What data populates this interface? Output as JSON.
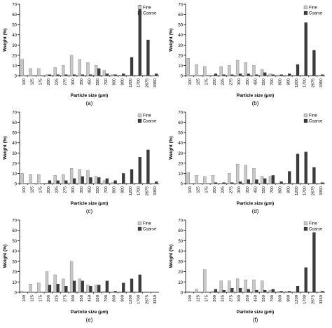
{
  "common": {
    "xlabel": "Particle size (μm)",
    "ylabel": "Weight (%)",
    "legend": [
      "Fine",
      "Coarse"
    ],
    "colors": {
      "fine": "#c8c8c8",
      "coarse": "#3c3c3c"
    }
  },
  "chart_data": [
    {
      "id": "a",
      "caption": "(a)",
      "type": "bar",
      "ylim": [
        0,
        70
      ],
      "yticks": [
        0,
        10,
        20,
        30,
        40,
        50,
        60,
        70
      ],
      "legend_position": "top-right",
      "categories": [
        "100",
        "125",
        "175",
        "200",
        "225",
        "275",
        "300",
        "350",
        "450",
        "550",
        "700",
        "800",
        "900",
        "1200",
        "1700",
        "2675",
        "3350"
      ],
      "series": [
        {
          "name": "Fine",
          "values": [
            16,
            7,
            7,
            1,
            8,
            10,
            20,
            16,
            13,
            10,
            5,
            1,
            0.5,
            0.5,
            0.5,
            0.5,
            0
          ]
        },
        {
          "name": "Coarse",
          "values": [
            0,
            0,
            0,
            1,
            1,
            1,
            1,
            1,
            1,
            7,
            2,
            1,
            2,
            18,
            69,
            35,
            2
          ]
        }
      ]
    },
    {
      "id": "b",
      "caption": "(b)",
      "type": "bar",
      "ylim": [
        0,
        70
      ],
      "yticks": [
        0,
        10,
        20,
        30,
        40,
        50,
        60,
        70
      ],
      "legend_position": "top-right",
      "categories": [
        "100",
        "125",
        "175",
        "200",
        "225",
        "275",
        "300",
        "350",
        "450",
        "550",
        "700",
        "800",
        "900",
        "1200",
        "1700",
        "2675",
        "3350"
      ],
      "series": [
        {
          "name": "Fine",
          "values": [
            17,
            11,
            9,
            0.5,
            9,
            10,
            15,
            13,
            10,
            6,
            2,
            0.5,
            0.5,
            0.5,
            0.5,
            0.5,
            0
          ]
        },
        {
          "name": "Coarse",
          "values": [
            0,
            0,
            0,
            2,
            1,
            1,
            2,
            2,
            1,
            3,
            1,
            1,
            2,
            11,
            52,
            25,
            1
          ]
        }
      ]
    },
    {
      "id": "c",
      "caption": "(c)",
      "type": "bar",
      "ylim": [
        0,
        70
      ],
      "yticks": [
        0,
        10,
        20,
        30,
        40,
        50,
        60,
        70
      ],
      "legend_position": "top-right",
      "categories": [
        "100",
        "125",
        "175",
        "200",
        "225",
        "275",
        "300",
        "350",
        "450",
        "550",
        "700",
        "800",
        "900",
        "1200",
        "1700",
        "2675",
        "3350"
      ],
      "series": [
        {
          "name": "Fine",
          "values": [
            10,
            9,
            9,
            0.5,
            8,
            9,
            15,
            14,
            13,
            7,
            3,
            1,
            0.5,
            0.5,
            0.5,
            0.5,
            0
          ]
        },
        {
          "name": "Coarse",
          "values": [
            0,
            0,
            0,
            3,
            3,
            3,
            5,
            7,
            6,
            6,
            5,
            3,
            10,
            14,
            26,
            33,
            2
          ]
        }
      ]
    },
    {
      "id": "d",
      "caption": "(d)",
      "type": "bar",
      "ylim": [
        0,
        70
      ],
      "yticks": [
        0,
        10,
        20,
        30,
        40,
        50,
        60,
        70
      ],
      "legend_position": "top-right",
      "categories": [
        "100",
        "125",
        "175",
        "200",
        "225",
        "275",
        "300",
        "350",
        "450",
        "550",
        "700",
        "800",
        "900",
        "1200",
        "1700",
        "2675",
        "3350"
      ],
      "series": [
        {
          "name": "Fine",
          "values": [
            11,
            8,
            7,
            8,
            0.5,
            10,
            19,
            18,
            15,
            7,
            7,
            0.5,
            0.5,
            0.5,
            0.5,
            0.5,
            0
          ]
        },
        {
          "name": "Coarse",
          "values": [
            0,
            0,
            0,
            1,
            1,
            1,
            2,
            4,
            4,
            5,
            8,
            2,
            12,
            29,
            31,
            16,
            1
          ]
        }
      ]
    },
    {
      "id": "e",
      "caption": "(e)",
      "type": "bar",
      "ylim": [
        0,
        70
      ],
      "yticks": [
        0,
        10,
        20,
        30,
        40,
        50,
        60,
        70
      ],
      "legend_position": "top-right",
      "categories": [
        "100",
        "125",
        "175",
        "200",
        "225",
        "275",
        "300",
        "350",
        "450",
        "550",
        "700",
        "800",
        "900",
        "1200",
        "1700",
        "2675",
        "3350"
      ],
      "series": [
        {
          "name": "Fine",
          "values": [
            1,
            8,
            9,
            20,
            17,
            13,
            30,
            13,
            7,
            7,
            1,
            0.5,
            0.5,
            0.5,
            0.5,
            0.5,
            0
          ]
        },
        {
          "name": "Coarse",
          "values": [
            0,
            0,
            0,
            7,
            8,
            6,
            11,
            11,
            6,
            7,
            11,
            1,
            9,
            13,
            17,
            0,
            0
          ]
        }
      ]
    },
    {
      "id": "f",
      "caption": "(f)",
      "type": "bar",
      "ylim": [
        0,
        70
      ],
      "yticks": [
        0,
        10,
        20,
        30,
        40,
        50,
        60,
        70
      ],
      "legend_position": "top-right",
      "categories": [
        "100",
        "125",
        "175",
        "200",
        "225",
        "275",
        "300",
        "350",
        "450",
        "550",
        "700",
        "800",
        "900",
        "1200",
        "1700",
        "2675",
        "3350"
      ],
      "series": [
        {
          "name": "Fine",
          "values": [
            1,
            3,
            22,
            1,
            11,
            11,
            13,
            12,
            12,
            11,
            2,
            1,
            1,
            0.5,
            0.5,
            0.5,
            0
          ]
        },
        {
          "name": "Coarse",
          "values": [
            0,
            0,
            0,
            3,
            2,
            4,
            4,
            3,
            2,
            2,
            3,
            1,
            1,
            6,
            24,
            58,
            1
          ]
        }
      ]
    }
  ]
}
